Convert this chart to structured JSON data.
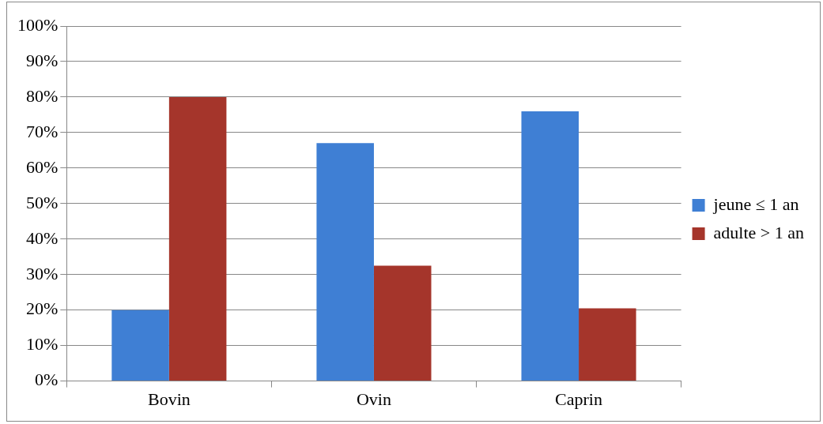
{
  "chart_data": {
    "type": "bar",
    "categories": [
      "Bovin",
      "Ovin",
      "Caprin"
    ],
    "series": [
      {
        "name": "jeune ≤ 1 an",
        "color": "#3f7fd4",
        "values": [
          20,
          67,
          76
        ]
      },
      {
        "name": "adulte > 1 an",
        "color": "#a5352b",
        "values": [
          80,
          32.5,
          20.5
        ]
      }
    ],
    "ylim": [
      0,
      100
    ],
    "yticks": [
      {
        "value": 0,
        "label": "0%"
      },
      {
        "value": 10,
        "label": "10%"
      },
      {
        "value": 20,
        "label": "20%"
      },
      {
        "value": 30,
        "label": "30%"
      },
      {
        "value": 40,
        "label": "40%"
      },
      {
        "value": 50,
        "label": "50%"
      },
      {
        "value": 60,
        "label": "60%"
      },
      {
        "value": 70,
        "label": "70%"
      },
      {
        "value": 80,
        "label": "80%"
      },
      {
        "value": 90,
        "label": "90%"
      },
      {
        "value": 100,
        "label": "100%"
      }
    ],
    "grid": "y",
    "legend": "right"
  }
}
